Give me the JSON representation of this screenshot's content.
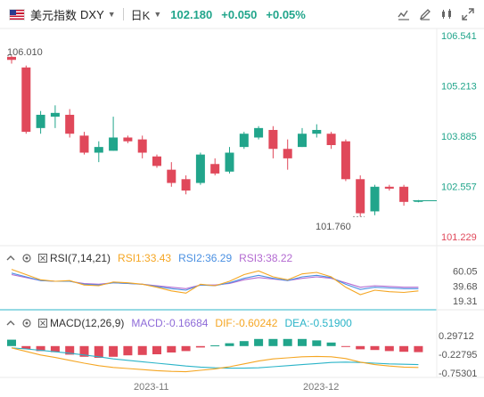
{
  "header": {
    "name": "美元指数",
    "symbol": "DXY",
    "period": "日K",
    "price": "102.180",
    "change": "+0.050",
    "change_pct": "+0.05%"
  },
  "colors": {
    "up": "#21a58b",
    "down": "#e0485a",
    "price_axis": "#21a58b",
    "price_axis_low": "#e0485a"
  },
  "price_axis": [
    "106.541",
    "105.213",
    "103.885",
    "102.557",
    "101.229"
  ],
  "annotations": {
    "high": "106.010",
    "low": "101.760"
  },
  "rsi": {
    "label": "RSI(7,14,21)",
    "rsi1": "RSI1:33.43",
    "rsi2": "RSI2:36.29",
    "rsi3": "RSI3:38.22",
    "axis": [
      "60.05",
      "39.68",
      "19.31"
    ],
    "colors": {
      "rsi1": "#f5a623",
      "rsi2": "#4a90e2",
      "rsi3": "#b36ad1"
    }
  },
  "macd": {
    "label": "MACD(12,26,9)",
    "macd": "MACD:-0.16684",
    "dif": "DIF:-0.60242",
    "dea": "DEA:-0.51900",
    "axis": [
      "0.29712",
      "-0.22795",
      "-0.75301"
    ],
    "colors": {
      "macd": "#8e6bd8",
      "dif": "#f5a623",
      "dea": "#2bb4c8"
    }
  },
  "x_axis": [
    "2023-11",
    "2023-12"
  ],
  "chart_data": {
    "type": "candlestick",
    "y_range": [
      101.229,
      106.541
    ],
    "candles": [
      {
        "o": 105.98,
        "c": 105.9,
        "h": 106.01,
        "l": 105.8
      },
      {
        "o": 105.7,
        "c": 104.0,
        "h": 105.75,
        "l": 103.95
      },
      {
        "o": 104.1,
        "c": 104.45,
        "h": 104.55,
        "l": 103.95
      },
      {
        "o": 104.4,
        "c": 104.5,
        "h": 104.7,
        "l": 104.1
      },
      {
        "o": 104.45,
        "c": 103.95,
        "h": 104.6,
        "l": 103.85
      },
      {
        "o": 103.9,
        "c": 103.45,
        "h": 104.0,
        "l": 103.4
      },
      {
        "o": 103.45,
        "c": 103.6,
        "h": 103.75,
        "l": 103.2
      },
      {
        "o": 103.5,
        "c": 103.85,
        "h": 104.4,
        "l": 103.5
      },
      {
        "o": 103.85,
        "c": 103.75,
        "h": 103.9,
        "l": 103.7
      },
      {
        "o": 103.8,
        "c": 103.45,
        "h": 103.9,
        "l": 103.3
      },
      {
        "o": 103.35,
        "c": 103.1,
        "h": 103.4,
        "l": 103.05
      },
      {
        "o": 103.0,
        "c": 102.65,
        "h": 103.2,
        "l": 102.55
      },
      {
        "o": 102.75,
        "c": 102.45,
        "h": 102.85,
        "l": 102.35
      },
      {
        "o": 102.65,
        "c": 103.4,
        "h": 103.45,
        "l": 102.6
      },
      {
        "o": 103.15,
        "c": 102.9,
        "h": 103.3,
        "l": 102.85
      },
      {
        "o": 102.95,
        "c": 103.45,
        "h": 103.6,
        "l": 102.9
      },
      {
        "o": 103.6,
        "c": 103.95,
        "h": 104.0,
        "l": 103.55
      },
      {
        "o": 103.85,
        "c": 104.1,
        "h": 104.15,
        "l": 103.8
      },
      {
        "o": 104.05,
        "c": 103.55,
        "h": 104.15,
        "l": 103.3
      },
      {
        "o": 103.55,
        "c": 103.3,
        "h": 103.8,
        "l": 103.0
      },
      {
        "o": 103.6,
        "c": 103.95,
        "h": 104.1,
        "l": 103.6
      },
      {
        "o": 103.95,
        "c": 104.05,
        "h": 104.2,
        "l": 103.85
      },
      {
        "o": 103.95,
        "c": 103.65,
        "h": 104.0,
        "l": 103.55
      },
      {
        "o": 103.75,
        "c": 102.75,
        "h": 103.8,
        "l": 102.7
      },
      {
        "o": 102.75,
        "c": 101.85,
        "h": 102.85,
        "l": 101.76
      },
      {
        "o": 101.9,
        "c": 102.55,
        "h": 102.6,
        "l": 101.8
      },
      {
        "o": 102.55,
        "c": 102.5,
        "h": 102.6,
        "l": 102.45
      },
      {
        "o": 102.55,
        "c": 102.15,
        "h": 102.6,
        "l": 102.05
      },
      {
        "o": 102.16,
        "c": 102.18,
        "h": 102.2,
        "l": 102.14
      }
    ],
    "rsi_series": {
      "rsi1": [
        62,
        55,
        48,
        46,
        47,
        41,
        40,
        45,
        44,
        42,
        38,
        33,
        30,
        42,
        40,
        46,
        55,
        60,
        52,
        48,
        56,
        58,
        52,
        38,
        28,
        34,
        32,
        31,
        33
      ],
      "rsi2": [
        57,
        52,
        47,
        46,
        46,
        42,
        41,
        44,
        43,
        42,
        39,
        36,
        34,
        41,
        40,
        44,
        50,
        54,
        50,
        47,
        52,
        54,
        51,
        42,
        35,
        38,
        37,
        36,
        36
      ],
      "rsi3": [
        55,
        51,
        47,
        46,
        46,
        43,
        42,
        44,
        43,
        42,
        40,
        38,
        36,
        41,
        41,
        43,
        48,
        51,
        49,
        47,
        50,
        52,
        50,
        44,
        38,
        40,
        39,
        38,
        38
      ]
    },
    "macd_series": {
      "hist": [
        0.18,
        -0.08,
        -0.14,
        -0.17,
        -0.24,
        -0.3,
        -0.33,
        -0.3,
        -0.26,
        -0.25,
        -0.23,
        -0.18,
        -0.14,
        -0.04,
        0.02,
        0.08,
        0.14,
        0.2,
        0.2,
        0.2,
        0.2,
        0.16,
        0.1,
        -0.02,
        -0.09,
        -0.11,
        -0.14,
        -0.16,
        -0.17
      ],
      "dif": [
        -0.05,
        -0.15,
        -0.25,
        -0.32,
        -0.4,
        -0.48,
        -0.55,
        -0.6,
        -0.63,
        -0.66,
        -0.69,
        -0.71,
        -0.72,
        -0.68,
        -0.64,
        -0.58,
        -0.5,
        -0.42,
        -0.36,
        -0.33,
        -0.3,
        -0.29,
        -0.3,
        -0.35,
        -0.45,
        -0.52,
        -0.56,
        -0.59,
        -0.6
      ],
      "dea": [
        -0.05,
        -0.08,
        -0.12,
        -0.16,
        -0.2,
        -0.25,
        -0.3,
        -0.36,
        -0.4,
        -0.44,
        -0.48,
        -0.52,
        -0.56,
        -0.59,
        -0.61,
        -0.62,
        -0.62,
        -0.61,
        -0.58,
        -0.55,
        -0.52,
        -0.49,
        -0.46,
        -0.45,
        -0.46,
        -0.48,
        -0.5,
        -0.51,
        -0.52
      ]
    }
  }
}
